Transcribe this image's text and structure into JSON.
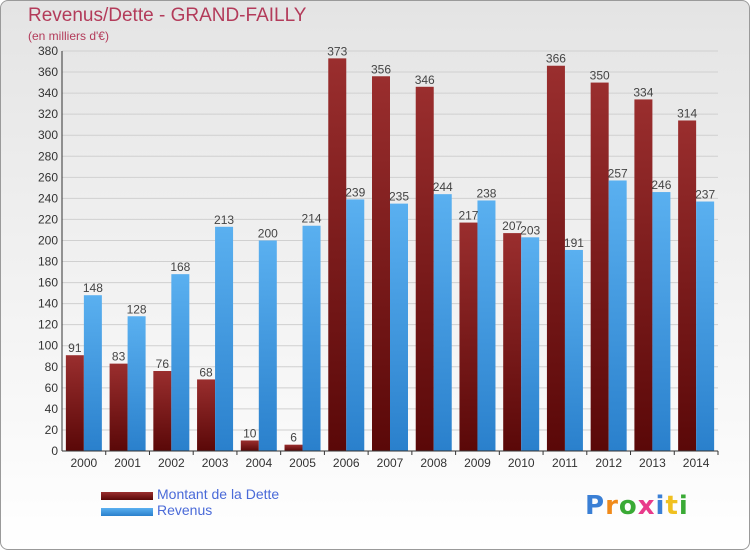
{
  "header": {
    "title": "Revenus/Dette - GRAND-FAILLY",
    "subtitle": "(en milliers d'€)"
  },
  "colors": {
    "dette": "#8b1a1a",
    "dette_dark": "#5a0a0a",
    "revenus": "#55aaee",
    "revenus_dark": "#2a7fd0",
    "text_accent": "#b33b5a",
    "legend_text": "#4a6ad8"
  },
  "chart_data": {
    "type": "bar",
    "title": "Revenus/Dette - GRAND-FAILLY",
    "subtitle": "(en milliers d'€)",
    "categories": [
      "2000",
      "2001",
      "2002",
      "2003",
      "2004",
      "2005",
      "2006",
      "2007",
      "2008",
      "2009",
      "2010",
      "2011",
      "2012",
      "2013",
      "2014"
    ],
    "series": [
      {
        "name": "Montant de la Dette",
        "values": [
          91,
          83,
          76,
          68,
          10,
          6,
          373,
          356,
          346,
          217,
          207,
          366,
          350,
          334,
          314
        ]
      },
      {
        "name": "Revenus",
        "values": [
          148,
          128,
          168,
          213,
          200,
          214,
          239,
          235,
          244,
          238,
          203,
          191,
          257,
          246,
          237
        ]
      }
    ],
    "ylim": [
      0,
      380
    ],
    "yticks": [
      0,
      20,
      40,
      60,
      80,
      100,
      120,
      140,
      160,
      180,
      200,
      220,
      240,
      260,
      280,
      300,
      320,
      340,
      360,
      380
    ],
    "grid": true,
    "legend_position": "bottom-left"
  },
  "legend": {
    "items": [
      {
        "label": "Montant de la Dette"
      },
      {
        "label": "Revenus"
      }
    ]
  },
  "logo": {
    "letters": [
      "P",
      "r",
      "o",
      "x",
      "i",
      "t",
      "i"
    ],
    "colors": [
      "#3a7fd5",
      "#f08a1a",
      "#3aaa35",
      "#e83a8a",
      "#3a7fd5",
      "#f0c020",
      "#3aaa35"
    ]
  }
}
